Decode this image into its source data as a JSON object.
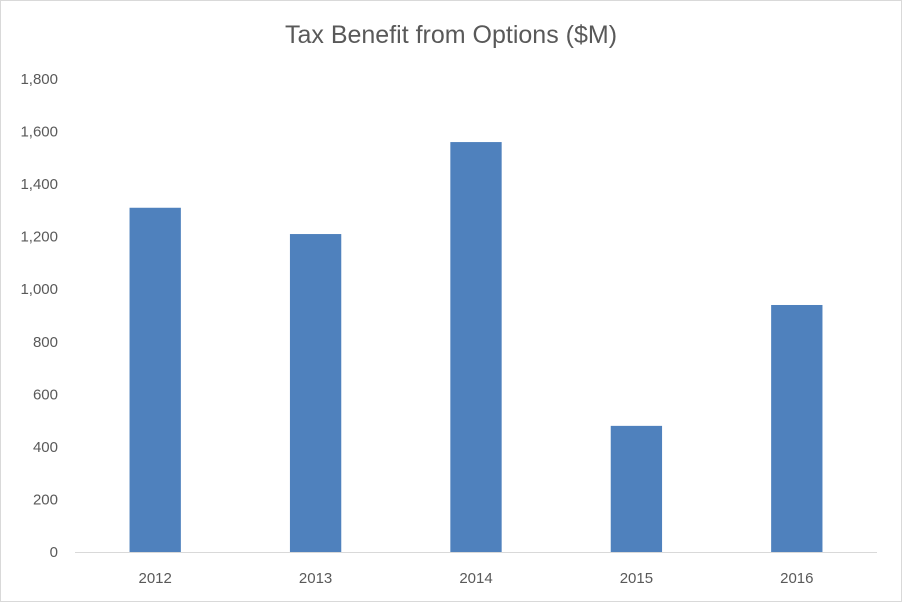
{
  "chart_data": {
    "type": "bar",
    "title": "Tax Benefit from Options ($M)",
    "categories": [
      "2012",
      "2013",
      "2014",
      "2015",
      "2016"
    ],
    "values": [
      1310,
      1210,
      1560,
      480,
      940
    ],
    "xlabel": "",
    "ylabel": "",
    "ylim": [
      0,
      1800
    ],
    "yticks": [
      0,
      200,
      400,
      600,
      800,
      1000,
      1200,
      1400,
      1600,
      1800
    ],
    "ytick_labels": [
      "0",
      "200",
      "400",
      "600",
      "800",
      "1,000",
      "1,200",
      "1,400",
      "1,600",
      "1,800"
    ],
    "grid": false,
    "legend": "none",
    "colors": {
      "bar": "#4f81bd",
      "axis": "#d9d9d9",
      "text": "#595959"
    }
  }
}
